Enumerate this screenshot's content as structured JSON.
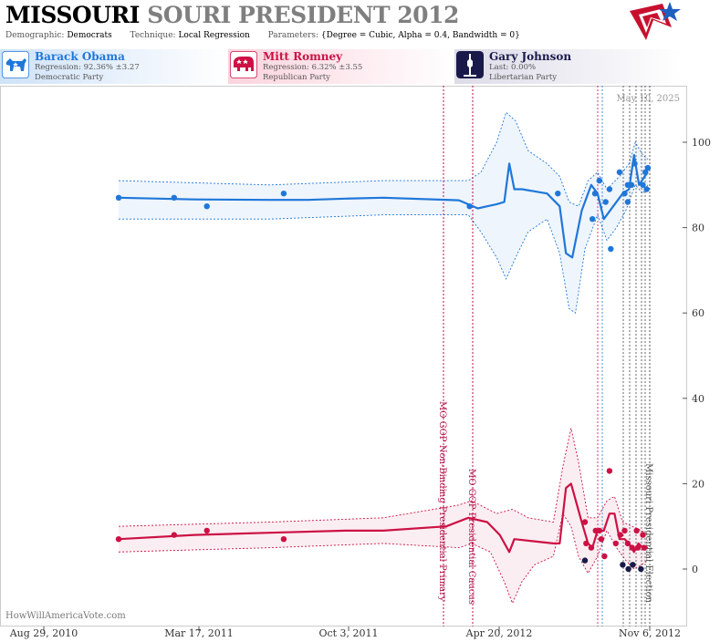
{
  "header": {
    "title_state": "MISSOURI",
    "title_rest": "SOURI PRESIDENT 2012",
    "demographic_label": "Demographic:",
    "demographic_value": "Democrats",
    "technique_label": "Technique:",
    "technique_value": "Local Regression",
    "parameters_label": "Parameters:",
    "parameters_value": "{Degree = Cubic, Alpha = 0.4, Bandwidth = 0}"
  },
  "candidates": [
    {
      "name": "Barack Obama",
      "stat": "Regression: 92.36% ±3.27",
      "party": "Democratic Party",
      "color": "#1f77d9",
      "icon": "donkey-icon"
    },
    {
      "name": "Mitt Romney",
      "stat": "Regression: 6.32% ±3.55",
      "party": "Republican Party",
      "color": "#cc1144",
      "icon": "elephant-icon"
    },
    {
      "name": "Gary Johnson",
      "stat": "Last: 0.00%",
      "party": "Libertarian Party",
      "color": "#1a1a4a",
      "icon": "liberty-icon"
    }
  ],
  "date_label": "May 10, 2025",
  "watermark": "HowWillAmericaVote.com",
  "chart_data": {
    "type": "line",
    "x_ticks": [
      "Aug 29, 2010",
      "Mar 17, 2011",
      "Oct 3, 2011",
      "Apr 20, 2012",
      "Nov 6, 2012"
    ],
    "y_ticks": [
      0,
      20,
      40,
      60,
      80,
      100
    ],
    "ylim": [
      -5,
      110
    ],
    "events": [
      {
        "label": "MO GOP Non-Binding Presidential Primary",
        "date": "2012-02-07",
        "color": "#b0134a"
      },
      {
        "label": "MO GOP Presidential Caucus",
        "date": "2012-03-17",
        "color": "#b0134a"
      },
      {
        "label": "Missouri Presidential Election",
        "date": "2012-11-06",
        "color": "#555555"
      }
    ],
    "series": [
      {
        "name": "Barack Obama",
        "color": "#1f77d9",
        "trend": [
          [
            0,
            87
          ],
          [
            120,
            86.6
          ],
          [
            240,
            86.5
          ],
          [
            300,
            86.5
          ],
          [
            360,
            86.8
          ],
          [
            420,
            87
          ],
          [
            540,
            86.4
          ],
          [
            570,
            84.5
          ],
          [
            585,
            85
          ],
          [
            600,
            85.5
          ],
          [
            612,
            86
          ],
          [
            620,
            95
          ],
          [
            628,
            89
          ],
          [
            640,
            89
          ],
          [
            660,
            88.5
          ],
          [
            680,
            88
          ],
          [
            700,
            85
          ],
          [
            710,
            74
          ],
          [
            720,
            73
          ],
          [
            735,
            84
          ],
          [
            750,
            90
          ],
          [
            760,
            88
          ],
          [
            770,
            82
          ],
          [
            785,
            85
          ],
          [
            800,
            88
          ],
          [
            810,
            89
          ],
          [
            818,
            97
          ],
          [
            826,
            90
          ],
          [
            835,
            92
          ],
          [
            840,
            93
          ]
        ],
        "upper": [
          [
            0,
            91
          ],
          [
            240,
            90
          ],
          [
            420,
            91
          ],
          [
            555,
            91
          ],
          [
            575,
            93
          ],
          [
            600,
            100
          ],
          [
            615,
            107
          ],
          [
            630,
            105
          ],
          [
            650,
            98
          ],
          [
            680,
            95
          ],
          [
            700,
            92
          ],
          [
            715,
            86
          ],
          [
            730,
            85
          ],
          [
            745,
            91
          ],
          [
            760,
            93
          ],
          [
            775,
            89
          ],
          [
            795,
            92
          ],
          [
            810,
            95
          ],
          [
            820,
            100
          ],
          [
            832,
            97
          ],
          [
            840,
            96
          ]
        ],
        "lower": [
          [
            0,
            82
          ],
          [
            240,
            82
          ],
          [
            420,
            83
          ],
          [
            555,
            83
          ],
          [
            575,
            79
          ],
          [
            600,
            73
          ],
          [
            615,
            68
          ],
          [
            630,
            73
          ],
          [
            650,
            79
          ],
          [
            680,
            82
          ],
          [
            700,
            74
          ],
          [
            715,
            61
          ],
          [
            725,
            60
          ],
          [
            740,
            75
          ],
          [
            760,
            83
          ],
          [
            775,
            77
          ],
          [
            790,
            80
          ],
          [
            805,
            84
          ],
          [
            820,
            90
          ],
          [
            832,
            88
          ],
          [
            840,
            90
          ]
        ],
        "points": [
          [
            0,
            87
          ],
          [
            88,
            87
          ],
          [
            140,
            85
          ],
          [
            262,
            88
          ],
          [
            557,
            85
          ],
          [
            697,
            88
          ],
          [
            752,
            82
          ],
          [
            756,
            88
          ],
          [
            763,
            91
          ],
          [
            773,
            86
          ],
          [
            781,
            75
          ],
          [
            779,
            89
          ],
          [
            795,
            93
          ],
          [
            803,
            88
          ],
          [
            808,
            86
          ],
          [
            808,
            90
          ],
          [
            814,
            90
          ],
          [
            819,
            95
          ],
          [
            832,
            90
          ],
          [
            836,
            93
          ],
          [
            840,
            94
          ],
          [
            838,
            89
          ]
        ]
      },
      {
        "name": "Mitt Romney",
        "color": "#cc1144",
        "trend": [
          [
            0,
            7
          ],
          [
            120,
            8
          ],
          [
            240,
            8.5
          ],
          [
            360,
            9
          ],
          [
            420,
            9
          ],
          [
            520,
            10
          ],
          [
            555,
            12
          ],
          [
            585,
            11
          ],
          [
            605,
            8
          ],
          [
            620,
            4
          ],
          [
            628,
            7
          ],
          [
            660,
            6.5
          ],
          [
            690,
            6
          ],
          [
            700,
            6
          ],
          [
            710,
            19
          ],
          [
            718,
            20
          ],
          [
            735,
            11
          ],
          [
            745,
            6
          ],
          [
            752,
            5
          ],
          [
            760,
            9
          ],
          [
            770,
            9
          ],
          [
            779,
            13
          ],
          [
            787,
            13
          ],
          [
            795,
            7
          ],
          [
            803,
            7
          ],
          [
            810,
            6
          ],
          [
            818,
            4
          ],
          [
            825,
            6
          ],
          [
            832,
            5
          ],
          [
            840,
            5
          ]
        ],
        "upper": [
          [
            0,
            10
          ],
          [
            240,
            11
          ],
          [
            420,
            12
          ],
          [
            540,
            15
          ],
          [
            560,
            16
          ],
          [
            600,
            13
          ],
          [
            625,
            14
          ],
          [
            650,
            12
          ],
          [
            690,
            11
          ],
          [
            705,
            24
          ],
          [
            718,
            33
          ],
          [
            730,
            25
          ],
          [
            745,
            12
          ],
          [
            760,
            12
          ],
          [
            775,
            16
          ],
          [
            787,
            17
          ],
          [
            800,
            11
          ],
          [
            815,
            10
          ],
          [
            830,
            9
          ],
          [
            840,
            8
          ]
        ],
        "lower": [
          [
            0,
            4
          ],
          [
            240,
            5
          ],
          [
            420,
            6
          ],
          [
            540,
            5
          ],
          [
            560,
            6
          ],
          [
            590,
            4
          ],
          [
            612,
            -3
          ],
          [
            625,
            -8
          ],
          [
            640,
            -3
          ],
          [
            660,
            1
          ],
          [
            690,
            3
          ],
          [
            705,
            13
          ],
          [
            718,
            10
          ],
          [
            730,
            3
          ],
          [
            745,
            -1
          ],
          [
            760,
            3
          ],
          [
            775,
            9
          ],
          [
            790,
            5
          ],
          [
            805,
            2
          ],
          [
            818,
            0
          ],
          [
            830,
            1
          ],
          [
            840,
            2
          ]
        ],
        "points": [
          [
            0,
            7
          ],
          [
            88,
            8
          ],
          [
            140,
            9
          ],
          [
            262,
            7
          ],
          [
            740,
            11
          ],
          [
            742,
            6
          ],
          [
            750,
            5
          ],
          [
            757,
            9
          ],
          [
            763,
            9
          ],
          [
            766,
            7
          ],
          [
            779,
            23
          ],
          [
            771,
            3
          ],
          [
            789,
            6
          ],
          [
            796,
            8
          ],
          [
            803,
            9
          ],
          [
            808,
            6
          ],
          [
            815,
            5
          ],
          [
            822,
            9
          ],
          [
            824,
            5
          ],
          [
            832,
            8
          ],
          [
            834,
            5
          ]
        ]
      },
      {
        "name": "Gary Johnson",
        "color": "#1a1a4a",
        "trend": [],
        "upper": [],
        "lower": [],
        "points": [
          [
            740,
            2
          ],
          [
            800,
            1
          ],
          [
            809,
            0
          ],
          [
            816,
            1
          ],
          [
            829,
            0
          ]
        ]
      }
    ]
  }
}
